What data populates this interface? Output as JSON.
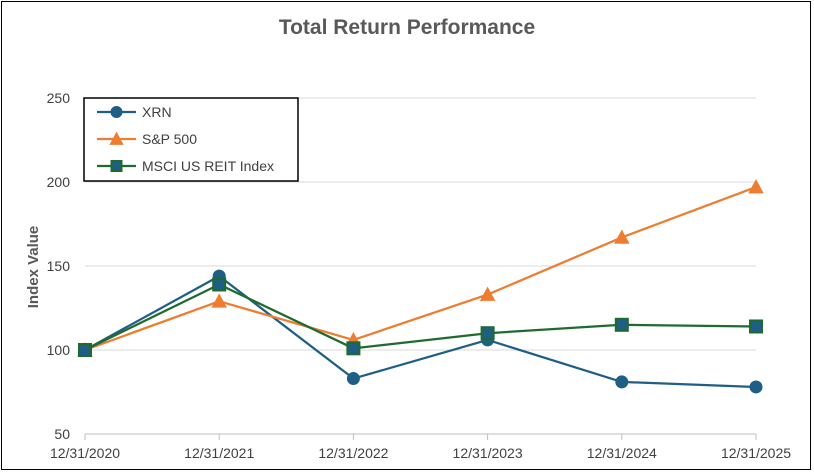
{
  "chart_data": {
    "type": "line",
    "title": "Total Return Performance",
    "xlabel": "",
    "ylabel": "Index Value",
    "categories": [
      "12/31/2020",
      "12/31/2021",
      "12/31/2022",
      "12/31/2023",
      "12/31/2024",
      "12/31/2025"
    ],
    "ylim": [
      50,
      250
    ],
    "yticks": [
      50,
      100,
      150,
      200,
      250
    ],
    "grid": true,
    "legend_position": "top-left",
    "series": [
      {
        "name": "XRN",
        "color": "#1f5f86",
        "marker": "circle",
        "values": [
          100,
          144,
          83,
          106,
          81,
          78
        ]
      },
      {
        "name": "S&P 500",
        "color": "#ed7d31",
        "marker": "triangle",
        "values": [
          100,
          129,
          106,
          133,
          167,
          197
        ]
      },
      {
        "name": "MSCI US REIT Index",
        "color": "#1e6b2e",
        "marker_fill": "#1f5f86",
        "marker": "square",
        "values": [
          100,
          139,
          101,
          110,
          115,
          114
        ]
      }
    ]
  }
}
